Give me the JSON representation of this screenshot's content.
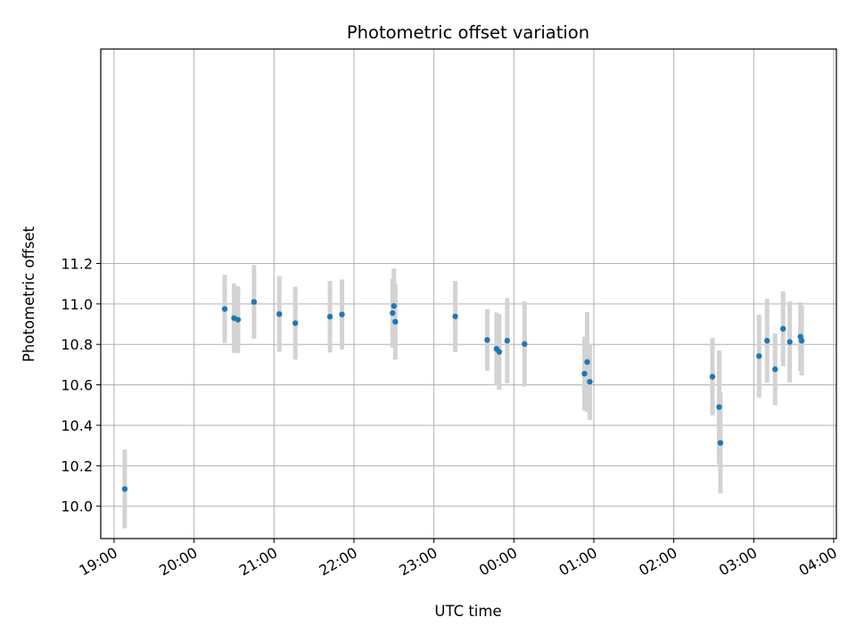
{
  "chart_data": {
    "type": "scatter",
    "title": "Photometric offset variation",
    "xlabel": "UTC time",
    "ylabel": "Photometric offset",
    "x_axis_type": "time",
    "xlim": [
      "18:50",
      "04:02"
    ],
    "ylim": [
      9.84,
      12.26
    ],
    "x_ticks": [
      "19:00",
      "20:00",
      "21:00",
      "22:00",
      "23:00",
      "00:00",
      "01:00",
      "02:00",
      "03:00",
      "04:00"
    ],
    "y_ticks": [
      "10.0",
      "10.2",
      "10.4",
      "10.6",
      "10.8",
      "11.0",
      "11.2"
    ],
    "y_tick_values": [
      10.0,
      10.2,
      10.4,
      10.6,
      10.8,
      11.0,
      11.2
    ],
    "grid": true,
    "colors": {
      "point": "#1f77b4",
      "errorbar": "#d3d3d3",
      "grid": "#b0b0b0"
    },
    "series": [
      {
        "points": [
          {
            "x": "19:08",
            "y": 10.085,
            "err": 0.195
          },
          {
            "x": "20:23",
            "y": 10.975,
            "err": 0.168
          },
          {
            "x": "20:30",
            "y": 10.93,
            "err": 0.172
          },
          {
            "x": "20:33",
            "y": 10.922,
            "err": 0.165
          },
          {
            "x": "20:45",
            "y": 11.01,
            "err": 0.182
          },
          {
            "x": "21:04",
            "y": 10.95,
            "err": 0.187
          },
          {
            "x": "21:16",
            "y": 10.905,
            "err": 0.18
          },
          {
            "x": "21:42",
            "y": 10.937,
            "err": 0.177
          },
          {
            "x": "21:51",
            "y": 10.948,
            "err": 0.173
          },
          {
            "x": "22:29",
            "y": 10.955,
            "err": 0.17
          },
          {
            "x": "22:30",
            "y": 10.99,
            "err": 0.185
          },
          {
            "x": "22:31",
            "y": 10.912,
            "err": 0.187
          },
          {
            "x": "23:16",
            "y": 10.938,
            "err": 0.176
          },
          {
            "x": "23:40",
            "y": 10.822,
            "err": 0.152
          },
          {
            "x": "23:47",
            "y": 10.778,
            "err": 0.18
          },
          {
            "x": "23:49",
            "y": 10.763,
            "err": 0.187
          },
          {
            "x": "23:55",
            "y": 10.818,
            "err": 0.211
          },
          {
            "x": "00:08",
            "y": 10.802,
            "err": 0.21
          },
          {
            "x": "00:53",
            "y": 10.655,
            "err": 0.183
          },
          {
            "x": "00:55",
            "y": 10.713,
            "err": 0.247
          },
          {
            "x": "00:57",
            "y": 10.615,
            "err": 0.188
          },
          {
            "x": "02:29",
            "y": 10.64,
            "err": 0.191
          },
          {
            "x": "02:34",
            "y": 10.49,
            "err": 0.28
          },
          {
            "x": "02:35",
            "y": 10.313,
            "err": 0.25
          },
          {
            "x": "03:04",
            "y": 10.742,
            "err": 0.205
          },
          {
            "x": "03:10",
            "y": 10.818,
            "err": 0.207
          },
          {
            "x": "03:16",
            "y": 10.677,
            "err": 0.178
          },
          {
            "x": "03:22",
            "y": 10.877,
            "err": 0.185
          },
          {
            "x": "03:27",
            "y": 10.812,
            "err": 0.2
          },
          {
            "x": "03:35",
            "y": 10.838,
            "err": 0.17
          },
          {
            "x": "03:36",
            "y": 10.818,
            "err": 0.172
          }
        ]
      }
    ]
  }
}
